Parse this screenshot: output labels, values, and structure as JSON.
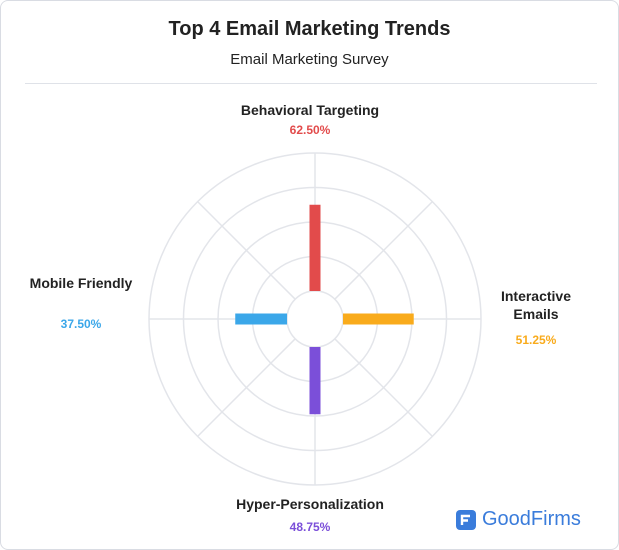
{
  "chart_data": {
    "type": "radial-bar",
    "title": "Top 4 Email Marketing Trends",
    "subtitle": "Email Marketing Survey",
    "categories": [
      "Behavioral Targeting",
      "Interactive Emails",
      "Hyper-Personalization",
      "Mobile Friendly"
    ],
    "values": [
      62.5,
      51.25,
      48.75,
      37.5
    ],
    "value_labels": [
      "62.50%",
      "51.25%",
      "48.75%",
      "37.50%"
    ],
    "colors": [
      "#e24b4b",
      "#f9ab1c",
      "#7b4fd9",
      "#3ba7e9"
    ],
    "ylim": [
      0,
      100
    ],
    "grid": true
  },
  "brand": "GoodFirms"
}
